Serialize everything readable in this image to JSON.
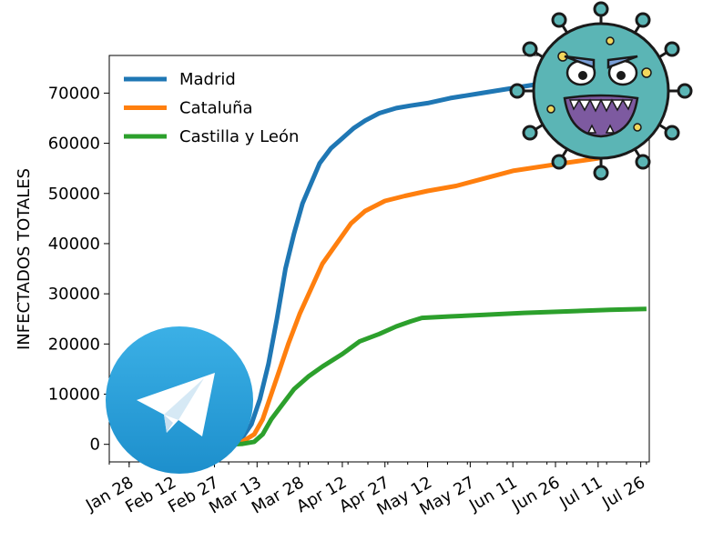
{
  "chart_data": {
    "type": "line",
    "title": "",
    "xlabel": "",
    "ylabel": "INFECTADOS TOTALES",
    "x_range": [
      "2020-01-21",
      "2020-07-29"
    ],
    "xticks": [
      {
        "date": "2020-01-28",
        "label": "Jan 28"
      },
      {
        "date": "2020-02-12",
        "label": "Feb 12"
      },
      {
        "date": "2020-02-27",
        "label": "Feb 27"
      },
      {
        "date": "2020-03-13",
        "label": "Mar 13"
      },
      {
        "date": "2020-03-28",
        "label": "Mar 28"
      },
      {
        "date": "2020-04-12",
        "label": "Apr 12"
      },
      {
        "date": "2020-04-27",
        "label": "Apr 27"
      },
      {
        "date": "2020-05-12",
        "label": "May 12"
      },
      {
        "date": "2020-05-27",
        "label": "May 27"
      },
      {
        "date": "2020-06-11",
        "label": "Jun 11"
      },
      {
        "date": "2020-06-26",
        "label": "Jun 26"
      },
      {
        "date": "2020-07-11",
        "label": "Jul 11"
      },
      {
        "date": "2020-07-26",
        "label": "Jul 26"
      }
    ],
    "ylim": [
      -3500,
      77500
    ],
    "yticks": [
      0,
      10000,
      20000,
      30000,
      40000,
      50000,
      60000,
      70000
    ],
    "grid": false,
    "legend_position": "top-left",
    "series": [
      {
        "name": "Madrid",
        "color": "#1f77b4",
        "points": [
          [
            "2020-03-01",
            100
          ],
          [
            "2020-03-05",
            500
          ],
          [
            "2020-03-08",
            1500
          ],
          [
            "2020-03-11",
            4000
          ],
          [
            "2020-03-14",
            9000
          ],
          [
            "2020-03-17",
            16000
          ],
          [
            "2020-03-20",
            25000
          ],
          [
            "2020-03-23",
            35000
          ],
          [
            "2020-03-26",
            42000
          ],
          [
            "2020-03-29",
            48000
          ],
          [
            "2020-04-01",
            52000
          ],
          [
            "2020-04-04",
            56000
          ],
          [
            "2020-04-08",
            59000
          ],
          [
            "2020-04-12",
            61000
          ],
          [
            "2020-04-16",
            63000
          ],
          [
            "2020-04-20",
            64500
          ],
          [
            "2020-04-25",
            66000
          ],
          [
            "2020-05-01",
            67000
          ],
          [
            "2020-05-06",
            67500
          ],
          [
            "2020-05-12",
            68000
          ],
          [
            "2020-05-20",
            69000
          ],
          [
            "2020-05-31",
            70000
          ],
          [
            "2020-06-11",
            71000
          ],
          [
            "2020-06-20",
            71800
          ],
          [
            "2020-06-26",
            72000
          ]
        ]
      },
      {
        "name": "Cataluña",
        "color": "#ff7f0e",
        "points": [
          [
            "2020-03-04",
            100
          ],
          [
            "2020-03-08",
            600
          ],
          [
            "2020-03-12",
            2000
          ],
          [
            "2020-03-15",
            5000
          ],
          [
            "2020-03-18",
            10000
          ],
          [
            "2020-03-21",
            15000
          ],
          [
            "2020-03-24",
            20000
          ],
          [
            "2020-03-28",
            26000
          ],
          [
            "2020-04-01",
            31000
          ],
          [
            "2020-04-05",
            36000
          ],
          [
            "2020-04-10",
            40000
          ],
          [
            "2020-04-15",
            44000
          ],
          [
            "2020-04-20",
            46500
          ],
          [
            "2020-04-27",
            48500
          ],
          [
            "2020-05-04",
            49500
          ],
          [
            "2020-05-12",
            50500
          ],
          [
            "2020-05-22",
            51500
          ],
          [
            "2020-06-01",
            53000
          ],
          [
            "2020-06-11",
            54500
          ],
          [
            "2020-06-26",
            55800
          ],
          [
            "2020-07-11",
            57000
          ],
          [
            "2020-07-17",
            58000
          ]
        ]
      },
      {
        "name": "Castilla y León",
        "color": "#2ca02c",
        "points": [
          [
            "2020-03-04",
            0
          ],
          [
            "2020-03-08",
            100
          ],
          [
            "2020-03-12",
            500
          ],
          [
            "2020-03-15",
            2000
          ],
          [
            "2020-03-18",
            5000
          ],
          [
            "2020-03-22",
            8000
          ],
          [
            "2020-03-26",
            11000
          ],
          [
            "2020-03-31",
            13500
          ],
          [
            "2020-04-05",
            15500
          ],
          [
            "2020-04-12",
            18000
          ],
          [
            "2020-04-18",
            20500
          ],
          [
            "2020-04-25",
            22000
          ],
          [
            "2020-05-01",
            23500
          ],
          [
            "2020-05-06",
            24500
          ],
          [
            "2020-05-10",
            25200
          ],
          [
            "2020-05-20",
            25500
          ],
          [
            "2020-06-01",
            25800
          ],
          [
            "2020-06-15",
            26200
          ],
          [
            "2020-07-01",
            26500
          ],
          [
            "2020-07-15",
            26800
          ],
          [
            "2020-07-28",
            27000
          ]
        ]
      }
    ]
  },
  "decorations": {
    "telegram_logo": {
      "icon": "telegram-paper-plane-icon",
      "color": "#2f9fd8"
    },
    "virus_cartoon": {
      "icon": "angry-virus-icon",
      "color": "#5bb5b5"
    }
  }
}
